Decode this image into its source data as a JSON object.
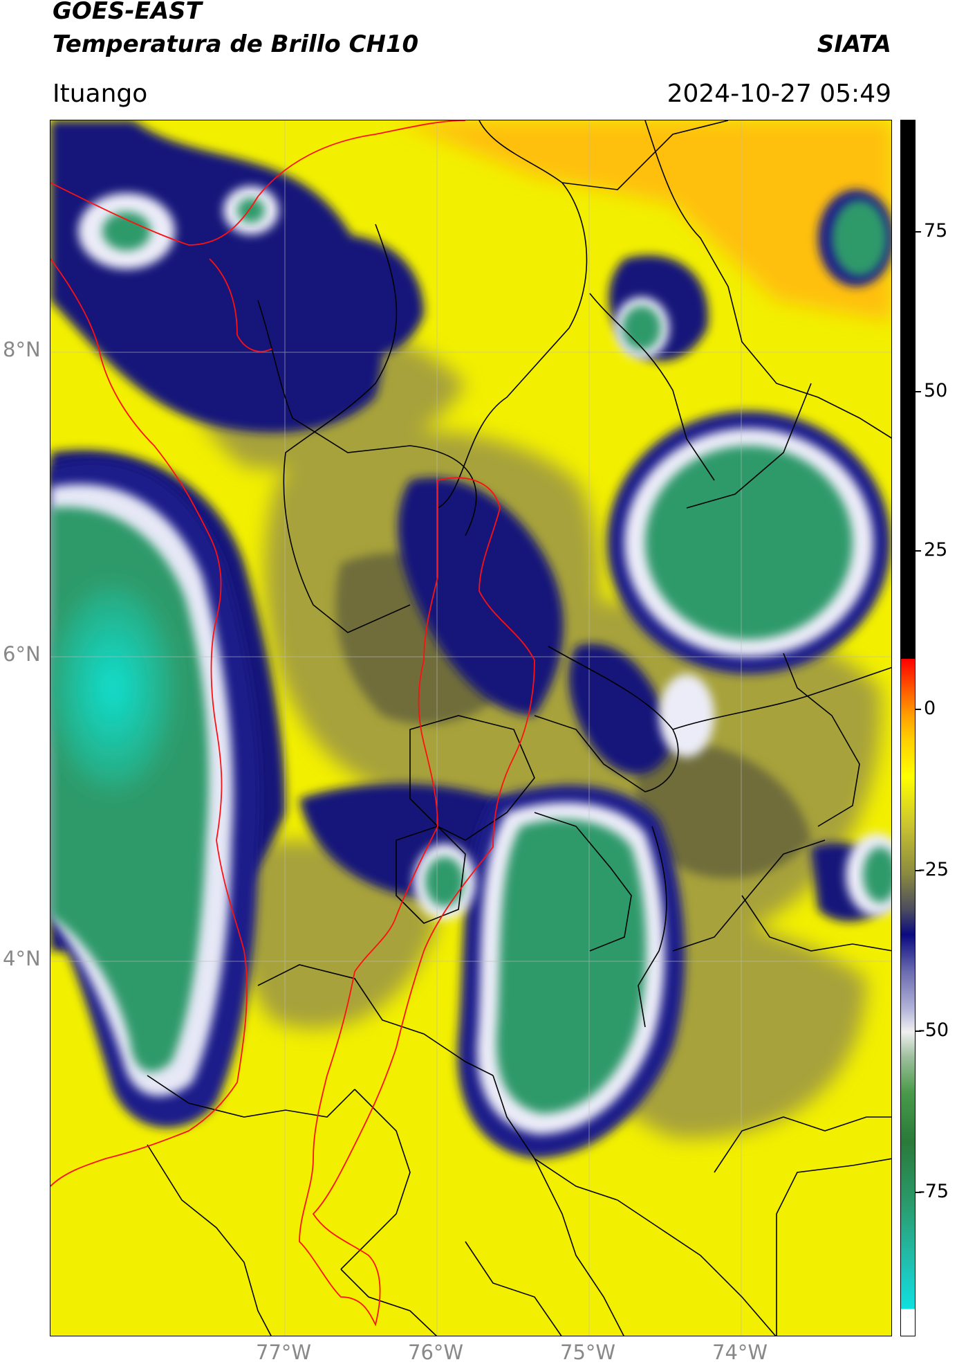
{
  "header": {
    "satellite": "GOES-EAST",
    "product": "Temperatura de Brillo CH10",
    "agency": "SIATA",
    "location": "Ituango",
    "datetime": "2024-10-27 05:49"
  },
  "map": {
    "lat_ticks": [
      "8°N",
      "6°N",
      "4°N"
    ],
    "lon_ticks": [
      "77°W",
      "76°W",
      "75°W",
      "74°W"
    ],
    "colors": {
      "warm": "#ffff00",
      "orange": "#ffb000",
      "olive": "#9a9a2a",
      "navy": "#10106e",
      "white": "#ffffff",
      "green": "#2f9a6a",
      "cyan": "#10e0d0",
      "boundary": "#000000",
      "region_boundary": "#ff0000"
    }
  },
  "colorbar": {
    "ticks": [
      "75",
      "50",
      "25",
      "0",
      "-25",
      "-50",
      "-75"
    ],
    "range": [
      -95,
      90
    ]
  }
}
